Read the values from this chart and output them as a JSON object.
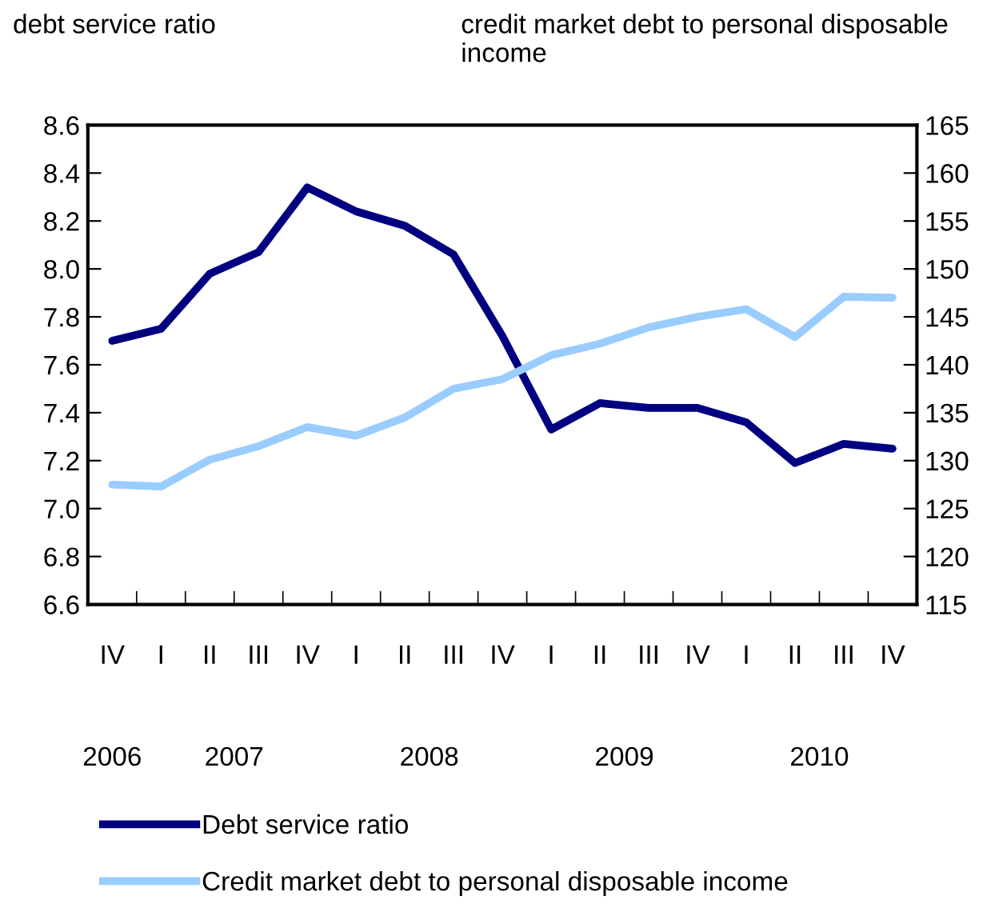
{
  "chart_data": {
    "type": "line",
    "ylabel": "debt service ratio",
    "y2label": "credit market debt to personal disposable income",
    "categories": [
      "IV",
      "I",
      "II",
      "III",
      "IV",
      "I",
      "II",
      "III",
      "IV",
      "I",
      "II",
      "III",
      "IV",
      "I",
      "II",
      "III",
      "IV"
    ],
    "annotations": [
      "2006",
      "2007",
      "2008",
      "2009",
      "2010"
    ],
    "series": [
      {
        "name": "Debt service ratio",
        "color": "#000080",
        "values": [
          7.7,
          7.75,
          7.98,
          8.07,
          8.34,
          8.24,
          8.18,
          8.06,
          7.72,
          7.33,
          7.44,
          7.42,
          7.42,
          7.36,
          7.19,
          7.27,
          7.25
        ]
      },
      {
        "name": "Credit market debt to personal disposable income",
        "color": "#99ccff",
        "axis": "y2",
        "values": [
          127.5,
          127.3,
          130.1,
          131.5,
          133.5,
          132.6,
          134.5,
          137.5,
          138.5,
          141.0,
          142.2,
          143.9,
          145.0,
          145.8,
          142.9,
          147.1,
          147.0
        ]
      }
    ],
    "ylim": [
      6.6,
      8.6
    ],
    "yticks": [
      6.6,
      6.8,
      {
        "value": 7.0,
        "label": "7.0"
      },
      7.2,
      7.4,
      7.6,
      7.8,
      {
        "value": 8.0,
        "label": "8.0"
      },
      8.2,
      8.4,
      8.6
    ],
    "y2lim": [
      115,
      165
    ],
    "y2ticks": [
      115,
      120,
      125,
      130,
      135,
      140,
      145,
      150,
      155,
      160,
      165
    ],
    "grid": false,
    "legend": "bottom",
    "line_style": "solid",
    "marker": "none"
  }
}
